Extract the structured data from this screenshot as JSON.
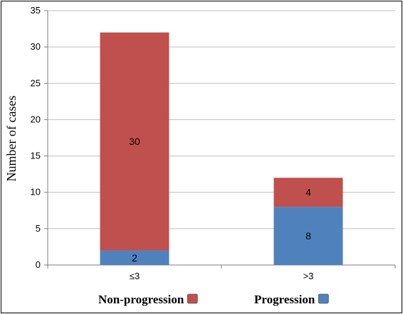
{
  "chart_data": {
    "type": "bar",
    "stacked": true,
    "categories": [
      "≤3",
      ">3"
    ],
    "series": [
      {
        "name": "Progression",
        "values": [
          2,
          8
        ],
        "color": "#4f81bd"
      },
      {
        "name": "Non-progression",
        "values": [
          30,
          4
        ],
        "color": "#c0504d"
      }
    ],
    "ylabel": "Number of cases",
    "xlabel": "",
    "title": "",
    "ylim": [
      0,
      35
    ],
    "yticks": [
      0,
      5,
      10,
      15,
      20,
      25,
      30,
      35
    ],
    "grid": true,
    "legend_position": "bottom",
    "legend_order": [
      "Non-progression",
      "Progression"
    ]
  }
}
